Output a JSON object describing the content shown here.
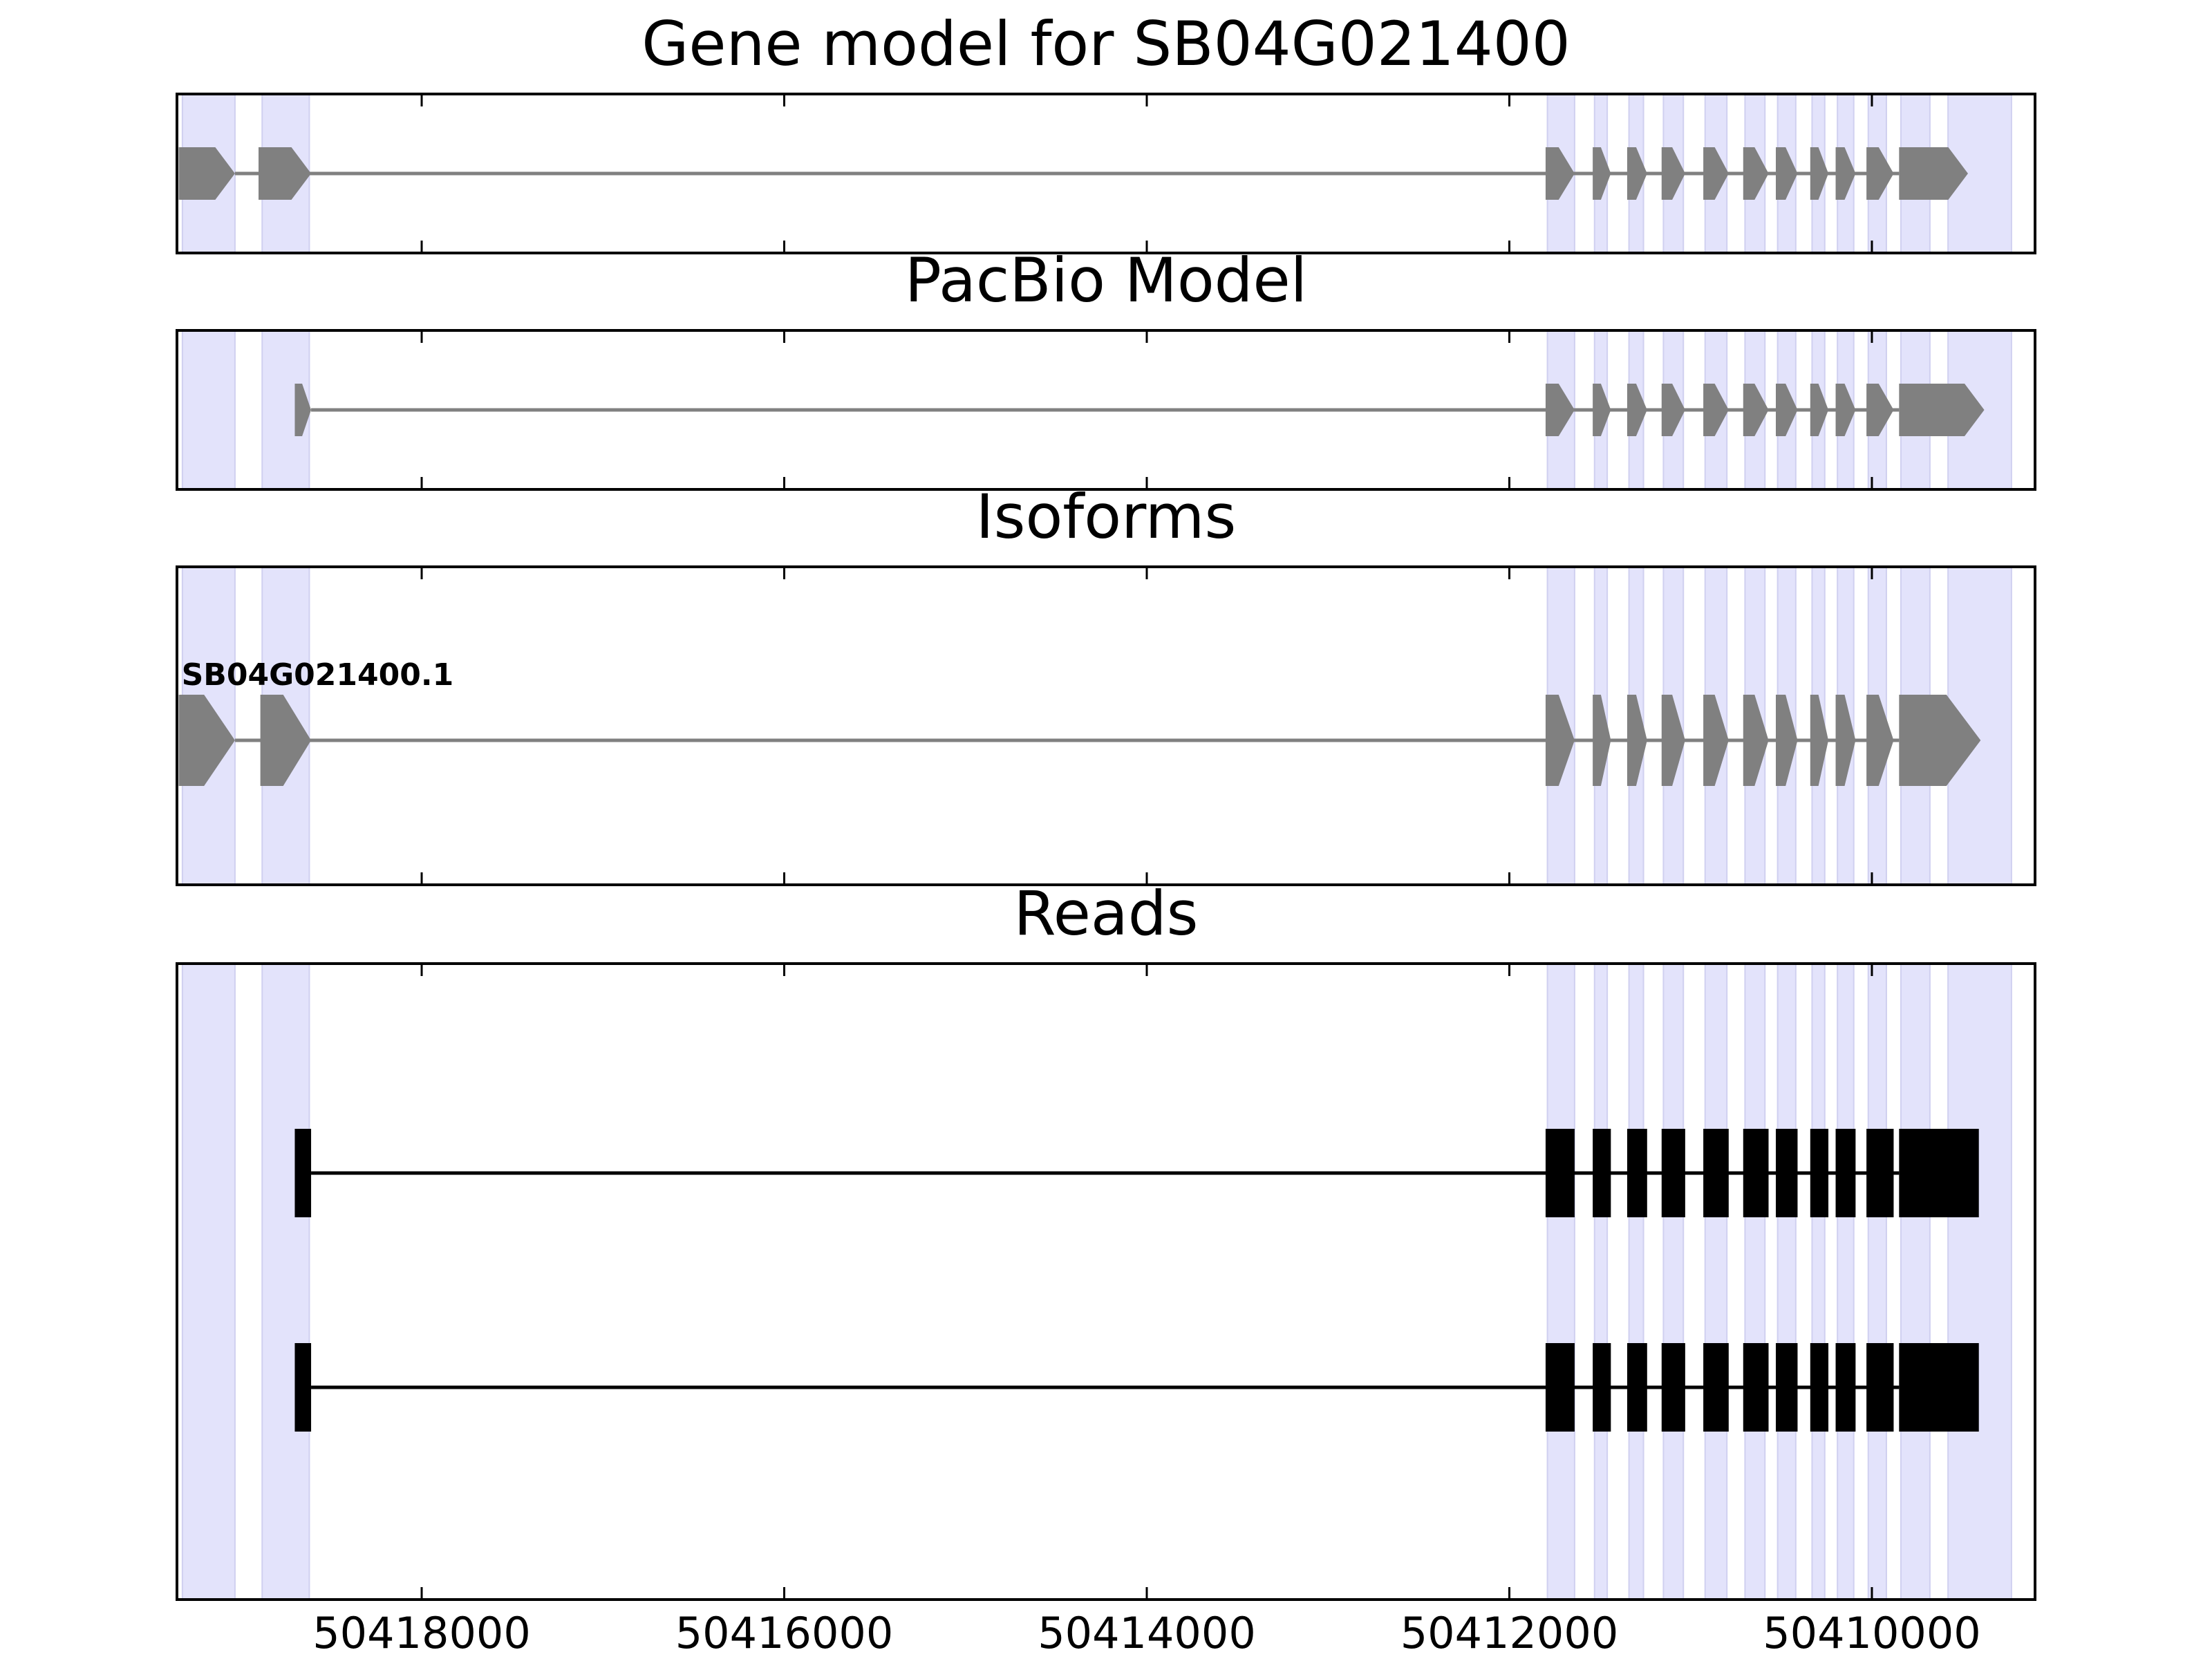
{
  "colors": {
    "highlight": "#e3e3fb",
    "highlight_edge": "#d0d0f0",
    "model_exon": "#808080",
    "intron": "#808080",
    "read": "#000000",
    "axis": "#000000"
  },
  "axis": {
    "orientation": "reversed",
    "xlim": [
      50419350,
      50409100
    ],
    "tick_values": [
      50418000,
      50416000,
      50414000,
      50412000,
      50410000
    ],
    "tick_labels": [
      "50418000",
      "50416000",
      "50414000",
      "50412000",
      "50410000"
    ]
  },
  "highlight_regions": [
    [
      50419320,
      50419030
    ],
    [
      50418880,
      50418620
    ],
    [
      50411790,
      50411640
    ],
    [
      50411530,
      50411460
    ],
    [
      50411340,
      50411260
    ],
    [
      50411150,
      50411040
    ],
    [
      50410920,
      50410800
    ],
    [
      50410700,
      50410590
    ],
    [
      50410520,
      50410420
    ],
    [
      50410330,
      50410260
    ],
    [
      50410190,
      50410100
    ],
    [
      50410020,
      50409920
    ],
    [
      50409840,
      50409680
    ],
    [
      50409580,
      50409230
    ]
  ],
  "panels": [
    {
      "id": "gene-model",
      "title": "Gene model for SB04G021400",
      "features": [
        {
          "exons": [
            [
              50419340,
              50419030
            ],
            [
              50418900,
              50418610
            ],
            [
              50411800,
              50411640
            ],
            [
              50411540,
              50411440
            ],
            [
              50411350,
              50411240
            ],
            [
              50411160,
              50411030
            ],
            [
              50410930,
              50410790
            ],
            [
              50410710,
              50410570
            ],
            [
              50410530,
              50410410
            ],
            [
              50410340,
              50410240
            ],
            [
              50410200,
              50410090
            ],
            [
              50410030,
              50409880
            ],
            [
              50409850,
              50409470
            ]
          ]
        }
      ]
    },
    {
      "id": "pacbio-model",
      "title": "PacBio Model",
      "features": [
        {
          "exons": [
            [
              50418700,
              50418610
            ],
            [
              50411800,
              50411640
            ],
            [
              50411540,
              50411440
            ],
            [
              50411350,
              50411240
            ],
            [
              50411160,
              50411030
            ],
            [
              50410930,
              50410790
            ],
            [
              50410710,
              50410570
            ],
            [
              50410530,
              50410410
            ],
            [
              50410340,
              50410240
            ],
            [
              50410200,
              50410090
            ],
            [
              50410030,
              50409880
            ],
            [
              50409850,
              50409380
            ]
          ]
        }
      ]
    },
    {
      "id": "isoforms",
      "title": "Isoforms",
      "features": [
        {
          "label": "SB04G021400.1",
          "exons": [
            [
              50419340,
              50419030
            ],
            [
              50418890,
              50418610
            ],
            [
              50411800,
              50411640
            ],
            [
              50411540,
              50411440
            ],
            [
              50411350,
              50411240
            ],
            [
              50411160,
              50411030
            ],
            [
              50410930,
              50410790
            ],
            [
              50410710,
              50410570
            ],
            [
              50410530,
              50410410
            ],
            [
              50410340,
              50410240
            ],
            [
              50410200,
              50410090
            ],
            [
              50410030,
              50409880
            ],
            [
              50409850,
              50409400
            ]
          ]
        }
      ]
    },
    {
      "id": "reads",
      "title": "Reads",
      "features": [
        {
          "exons": [
            [
              50418700,
              50418610
            ],
            [
              50411800,
              50411640
            ],
            [
              50411540,
              50411440
            ],
            [
              50411350,
              50411240
            ],
            [
              50411160,
              50411030
            ],
            [
              50410930,
              50410790
            ],
            [
              50410710,
              50410570
            ],
            [
              50410530,
              50410410
            ],
            [
              50410340,
              50410240
            ],
            [
              50410200,
              50410090
            ],
            [
              50410030,
              50409880
            ],
            [
              50409850,
              50409410
            ]
          ]
        },
        {
          "exons": [
            [
              50418700,
              50418610
            ],
            [
              50411800,
              50411640
            ],
            [
              50411540,
              50411440
            ],
            [
              50411350,
              50411240
            ],
            [
              50411160,
              50411030
            ],
            [
              50410930,
              50410790
            ],
            [
              50410710,
              50410570
            ],
            [
              50410530,
              50410410
            ],
            [
              50410340,
              50410240
            ],
            [
              50410200,
              50410090
            ],
            [
              50410030,
              50409880
            ],
            [
              50409850,
              50409410
            ]
          ]
        }
      ]
    }
  ]
}
